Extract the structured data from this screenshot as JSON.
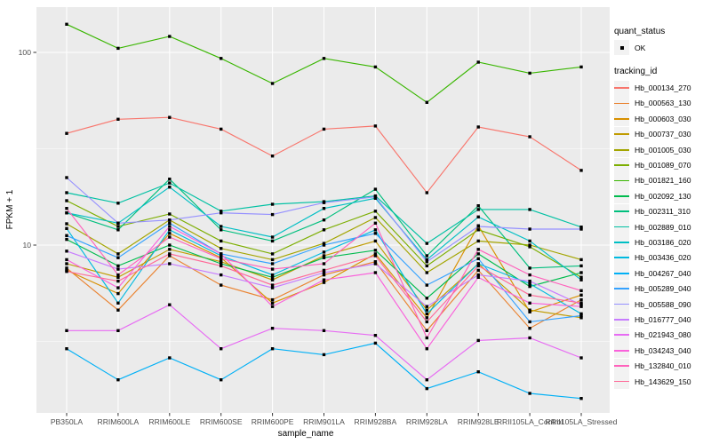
{
  "figure": {
    "bg": "#FFFFFF",
    "panel_bg": "#EBEBEB",
    "grid_color": "#FFFFFF",
    "axis_text_color": "#4D4D4D",
    "tick_color": "#333333",
    "point_color": "#000000"
  },
  "axes": {
    "x_label": "sample_name",
    "y_label": "FPKM + 1",
    "y_scale": "log10",
    "y_tick_labels": [
      "100",
      "10"
    ],
    "y_tick_values": [
      100,
      10
    ]
  },
  "legend": {
    "quant_status": {
      "title": "quant_status",
      "items": [
        {
          "label": "OK",
          "marker": "black-point"
        }
      ]
    },
    "tracking_id": {
      "title": "tracking_id"
    }
  },
  "chart_data": {
    "type": "line",
    "title": "",
    "xlabel": "sample_name",
    "ylabel": "FPKM + 1",
    "y_scale": "log10",
    "ylim": [
      1.45,
      170
    ],
    "grid": true,
    "legend_position": "right",
    "point_marker": "small black square (quant_status OK)",
    "categories": [
      "PB350LA",
      "RRIM600LA",
      "RRIM600LE",
      "RRIM600SE",
      "RRIM600PE",
      "RRIM901LA",
      "RRIM928BA",
      "RRIM928LA",
      "RRIM928LE",
      "RRII105LA_Control",
      "RRII105LA_Stressed"
    ],
    "series": [
      {
        "name": "Hb_000134_270",
        "color": "#F8766D",
        "values": [
          38,
          45,
          46,
          40,
          29,
          40,
          41.5,
          18.7,
          41,
          36.5,
          24.4
        ]
      },
      {
        "name": "Hb_000563_130",
        "color": "#EA8331",
        "values": [
          7.6,
          4.6,
          8.8,
          6.2,
          5.2,
          7.0,
          8.2,
          3.6,
          7.4,
          3.7,
          5.2
        ]
      },
      {
        "name": "Hb_000603_030",
        "color": "#D89000",
        "values": [
          7.4,
          5.6,
          11.5,
          8.6,
          5.0,
          6.4,
          9.0,
          4.2,
          12.6,
          4.5,
          5.5
        ]
      },
      {
        "name": "Hb_000737_030",
        "color": "#C09B00",
        "values": [
          8.0,
          6.8,
          9.5,
          8.2,
          6.6,
          8.8,
          10.5,
          4.6,
          8.0,
          4.6,
          4.2
        ]
      },
      {
        "name": "Hb_001005_030",
        "color": "#A3A500",
        "values": [
          12.9,
          9.0,
          13.5,
          9.6,
          8.4,
          10.2,
          13.9,
          7.2,
          10.5,
          10.0,
          8.4
        ]
      },
      {
        "name": "Hb_001089_070",
        "color": "#7CAE00",
        "values": [
          17.0,
          12.5,
          14.5,
          10.5,
          9.0,
          12.0,
          15.0,
          7.8,
          12.0,
          9.8,
          6.8
        ]
      },
      {
        "name": "Hb_001821_160",
        "color": "#39B600",
        "values": [
          140,
          105,
          121,
          93,
          69,
          93,
          84,
          55,
          89,
          78,
          84
        ]
      },
      {
        "name": "Hb_002092_130",
        "color": "#00BB4E",
        "values": [
          10.7,
          7.8,
          10.0,
          8.0,
          6.8,
          8.6,
          9.4,
          5.3,
          9.0,
          6.1,
          7.2
        ]
      },
      {
        "name": "Hb_002311_310",
        "color": "#00BF7D",
        "values": [
          14.7,
          12.0,
          22.0,
          12.0,
          10.5,
          13.5,
          19.5,
          8.8,
          16.0,
          7.6,
          7.8
        ]
      },
      {
        "name": "Hb_002889_010",
        "color": "#00C1A3",
        "values": [
          18.7,
          16.5,
          21.0,
          15.0,
          16.3,
          16.8,
          18.0,
          10.2,
          15.3,
          15.3,
          12.4
        ]
      },
      {
        "name": "Hb_003186_020",
        "color": "#00BFC4",
        "values": [
          14.7,
          13.0,
          20.0,
          12.5,
          11.0,
          15.5,
          17.5,
          8.4,
          14.0,
          10.5,
          6.6
        ]
      },
      {
        "name": "Hb_003436_020",
        "color": "#00BAE0",
        "values": [
          12.2,
          5.0,
          12.0,
          8.8,
          7.0,
          9.2,
          12.0,
          4.4,
          8.0,
          6.3,
          4.4
        ]
      },
      {
        "name": "Hb_004267_040",
        "color": "#00B0F6",
        "values": [
          2.9,
          2.0,
          2.6,
          2.0,
          2.9,
          2.7,
          3.1,
          1.8,
          2.2,
          1.7,
          1.6
        ]
      },
      {
        "name": "Hb_005289_040",
        "color": "#35A2FF",
        "values": [
          11.2,
          8.6,
          13.0,
          9.0,
          8.0,
          10.0,
          11.5,
          6.2,
          8.5,
          4.0,
          4.3
        ]
      },
      {
        "name": "Hb_005588_090",
        "color": "#9590FF",
        "values": [
          22.4,
          13.0,
          13.5,
          14.7,
          14.4,
          16.6,
          17.8,
          8.2,
          12.5,
          12.1,
          12.1
        ]
      },
      {
        "name": "Hb_016777_040",
        "color": "#C77CFF",
        "values": [
          9.3,
          7.5,
          8.0,
          7.0,
          6.0,
          7.2,
          8.0,
          4.8,
          7.0,
          6.5,
          4.9
        ]
      },
      {
        "name": "Hb_021943_080",
        "color": "#E76BF3",
        "values": [
          3.6,
          3.6,
          4.9,
          2.9,
          3.7,
          3.6,
          3.4,
          2.0,
          3.2,
          3.3,
          2.6
        ]
      },
      {
        "name": "Hb_034243_040",
        "color": "#FA62DB",
        "values": [
          8.4,
          6.0,
          12.5,
          9.0,
          4.8,
          6.6,
          7.2,
          2.9,
          6.8,
          5.0,
          4.8
        ]
      },
      {
        "name": "Hb_132840_010",
        "color": "#FF62BC",
        "values": [
          15.5,
          7.0,
          11.0,
          8.5,
          7.5,
          8.0,
          13.0,
          3.3,
          9.5,
          7.0,
          5.8
        ]
      },
      {
        "name": "Hb_143629_150",
        "color": "#FF6A98",
        "values": [
          7.3,
          6.5,
          9.0,
          7.8,
          6.2,
          7.4,
          8.8,
          4.0,
          7.8,
          5.5,
          5.0
        ]
      }
    ]
  }
}
